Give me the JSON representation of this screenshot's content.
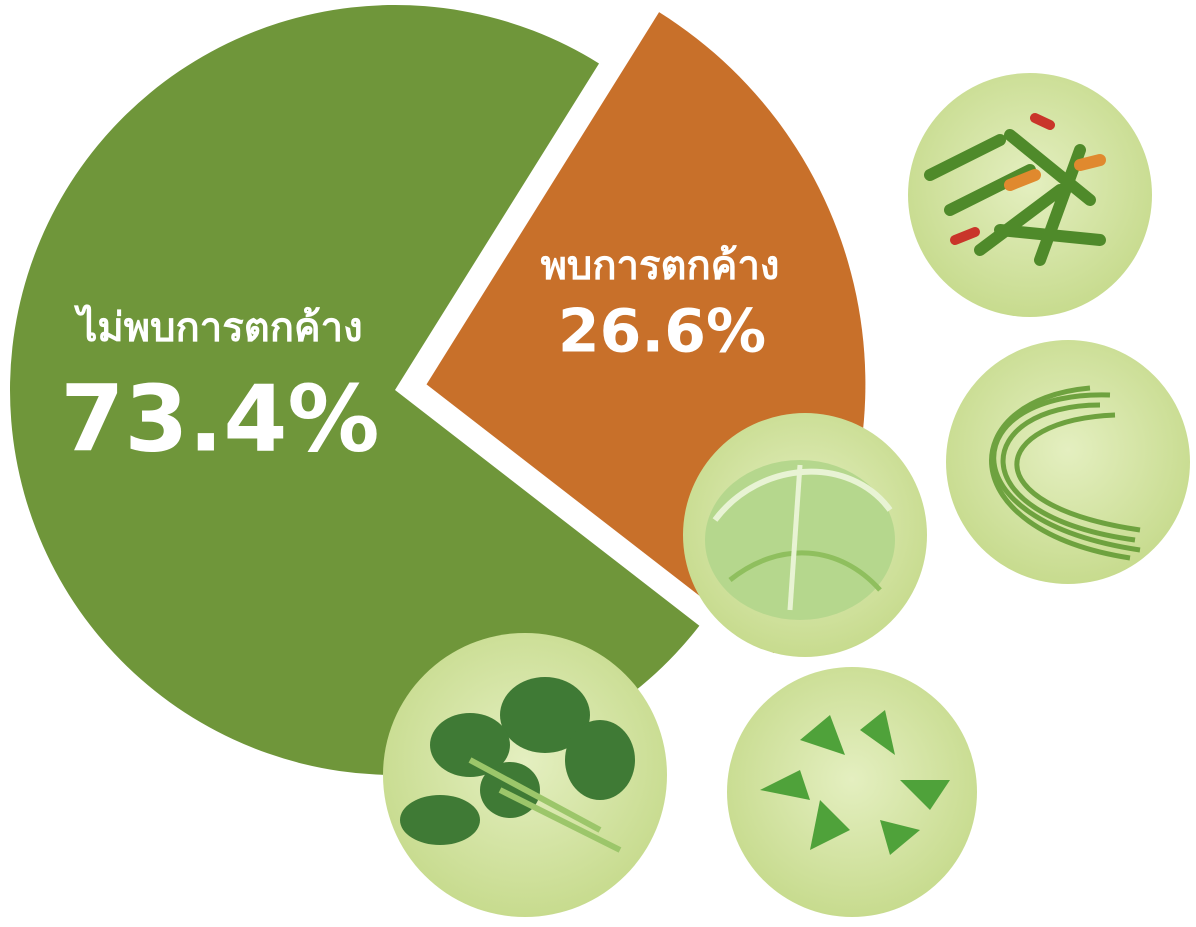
{
  "chart_data": {
    "type": "pie",
    "categories": [
      "ไม่พบการตกค้าง",
      "พบการตกค้าง"
    ],
    "values": [
      73.4,
      26.6
    ],
    "value_labels": [
      "73.4%",
      "26.6%"
    ],
    "colors": [
      "#6f963a",
      "#c8702a"
    ]
  }
}
